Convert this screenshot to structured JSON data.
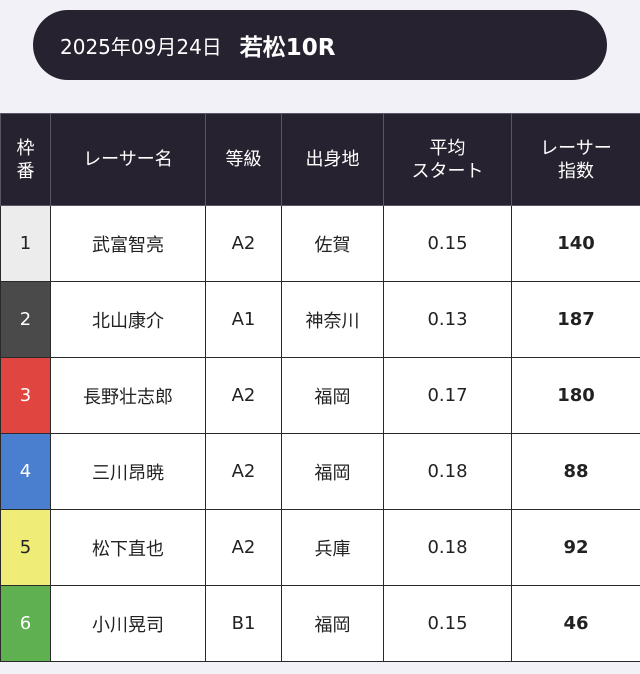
{
  "header": {
    "date": "2025年09月24日",
    "race": "若松10R"
  },
  "columns": {
    "waku_line1": "枠",
    "waku_line2": "番",
    "racer_name": "レーサー名",
    "grade": "等級",
    "hometown": "出身地",
    "avg_start_line1": "平均",
    "avg_start_line2": "スタート",
    "index_line1": "レーサー",
    "index_line2": "指数"
  },
  "rows": [
    {
      "waku": "1",
      "name": "武富智亮",
      "grade": "A2",
      "hometown": "佐賀",
      "avg_start": "0.15",
      "index": "140",
      "color": "#ececec"
    },
    {
      "waku": "2",
      "name": "北山康介",
      "grade": "A1",
      "hometown": "神奈川",
      "avg_start": "0.13",
      "index": "187",
      "color": "#4a4a4a"
    },
    {
      "waku": "3",
      "name": "長野壮志郎",
      "grade": "A2",
      "hometown": "福岡",
      "avg_start": "0.17",
      "index": "180",
      "color": "#e0463f"
    },
    {
      "waku": "4",
      "name": "三川昂暁",
      "grade": "A2",
      "hometown": "福岡",
      "avg_start": "0.18",
      "index": "88",
      "color": "#4a7fd0"
    },
    {
      "waku": "5",
      "name": "松下直也",
      "grade": "A2",
      "hometown": "兵庫",
      "avg_start": "0.18",
      "index": "92",
      "color": "#efed78"
    },
    {
      "waku": "6",
      "name": "小川晃司",
      "grade": "B1",
      "hometown": "福岡",
      "avg_start": "0.15",
      "index": "46",
      "color": "#5fb050"
    }
  ]
}
